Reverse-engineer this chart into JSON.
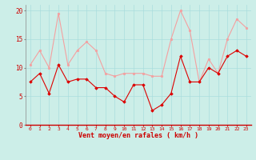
{
  "rafales": [
    10.5,
    13,
    10,
    19.5,
    10.5,
    13,
    14.5,
    13,
    9,
    8.5,
    9,
    9,
    9,
    8.5,
    8.5,
    15,
    20,
    16.5,
    7.5,
    11.5,
    9,
    15,
    18.5,
    17
  ],
  "moyen": [
    7.5,
    9,
    5.5,
    10.5,
    7.5,
    8,
    8,
    6.5,
    6.5,
    5,
    4,
    7,
    7,
    2.5,
    3.5,
    5.5,
    12,
    7.5,
    7.5,
    10,
    9,
    12,
    13,
    12
  ],
  "x_labels": [
    "0",
    "1",
    "2",
    "3",
    "4",
    "5",
    "6",
    "7",
    "8",
    "9",
    "10",
    "11",
    "12",
    "13",
    "14",
    "15",
    "16",
    "17",
    "18",
    "19",
    "20",
    "21",
    "22",
    "23"
  ],
  "xlabel_text": "Vent moyen/en rafales ( km/h )",
  "bg_color": "#cceee8",
  "grid_color": "#aadddd",
  "line_color_rafales": "#f4a0a0",
  "line_color_moyen": "#dd0000",
  "yticks": [
    0,
    5,
    10,
    15,
    20
  ],
  "ylim": [
    0,
    21
  ],
  "xlim": [
    -0.5,
    23.5
  ]
}
